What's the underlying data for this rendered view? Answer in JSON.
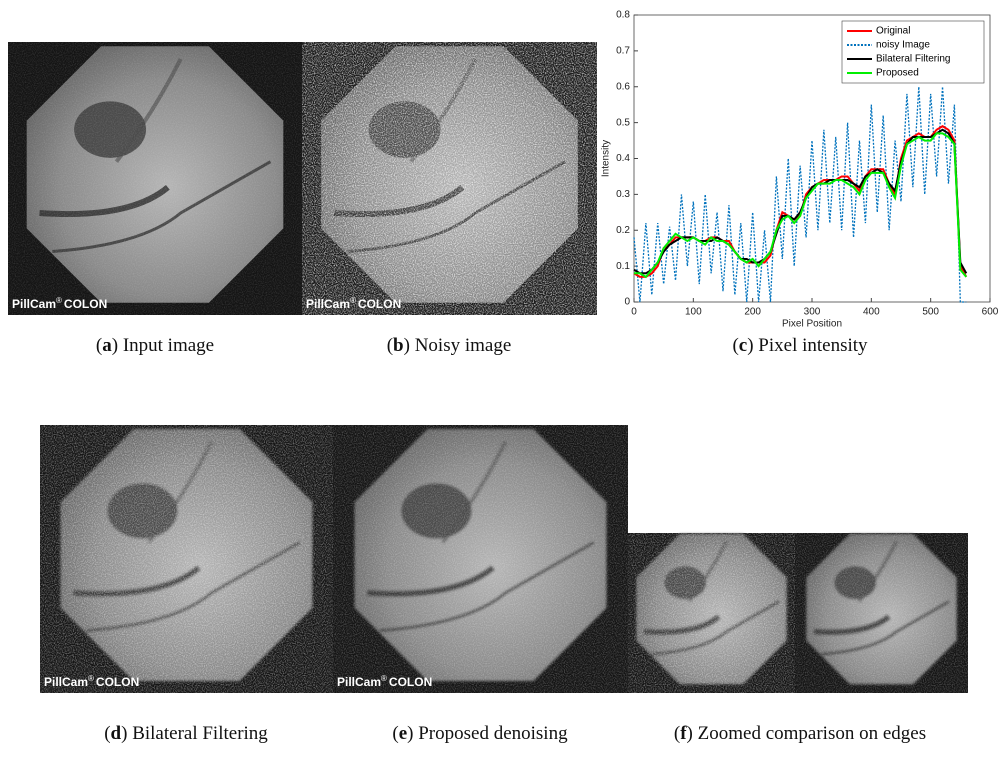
{
  "overlay": {
    "brand": "PillCam",
    "mark": "®",
    "product": "COLON"
  },
  "panels": [
    {
      "label": "a",
      "caption": "Input image"
    },
    {
      "label": "b",
      "caption": "Noisy image"
    },
    {
      "label": "c",
      "caption": "Pixel intensity"
    },
    {
      "label": "d",
      "caption": "Bilateral Filtering"
    },
    {
      "label": "e",
      "caption": "Proposed denoising"
    },
    {
      "label": "f",
      "caption": "Zoomed comparison on edges"
    }
  ],
  "chart_data": {
    "type": "line",
    "xlabel": "Pixel Position",
    "ylabel": "Intensity",
    "xlim": [
      0,
      600
    ],
    "ylim": [
      0,
      0.8
    ],
    "xticks": [
      0,
      100,
      200,
      300,
      400,
      500,
      600
    ],
    "yticks": [
      0,
      0.1,
      0.2,
      0.3,
      0.4,
      0.5,
      0.6,
      0.7,
      0.8
    ],
    "grid": false,
    "legend": "upper right",
    "x": [
      0,
      10,
      20,
      30,
      40,
      50,
      60,
      70,
      80,
      90,
      100,
      110,
      120,
      130,
      140,
      150,
      160,
      170,
      180,
      190,
      200,
      210,
      220,
      230,
      240,
      250,
      260,
      270,
      280,
      290,
      300,
      310,
      320,
      330,
      340,
      350,
      360,
      370,
      380,
      390,
      400,
      410,
      420,
      430,
      440,
      450,
      460,
      470,
      480,
      490,
      500,
      510,
      520,
      530,
      540,
      550,
      560
    ],
    "series": [
      {
        "name": "Original",
        "color": "#ff0000",
        "style": "solid",
        "values": [
          0.08,
          0.07,
          0.07,
          0.08,
          0.1,
          0.15,
          0.16,
          0.18,
          0.18,
          0.18,
          0.18,
          0.17,
          0.17,
          0.18,
          0.18,
          0.17,
          0.17,
          0.14,
          0.12,
          0.11,
          0.11,
          0.11,
          0.11,
          0.13,
          0.2,
          0.25,
          0.24,
          0.23,
          0.24,
          0.3,
          0.32,
          0.33,
          0.34,
          0.34,
          0.34,
          0.35,
          0.35,
          0.33,
          0.31,
          0.35,
          0.37,
          0.37,
          0.37,
          0.33,
          0.3,
          0.4,
          0.45,
          0.46,
          0.47,
          0.46,
          0.46,
          0.48,
          0.49,
          0.48,
          0.45,
          0.1,
          0.07
        ]
      },
      {
        "name": "noisy Image",
        "color": "#0072bd",
        "style": "dotted",
        "values": [
          0.18,
          0,
          0.22,
          0.02,
          0.22,
          0.05,
          0.21,
          0.06,
          0.3,
          0.1,
          0.28,
          0.05,
          0.3,
          0.08,
          0.25,
          0.03,
          0.27,
          0.02,
          0.22,
          0,
          0.25,
          0,
          0.2,
          0,
          0.35,
          0.12,
          0.4,
          0.1,
          0.38,
          0.18,
          0.45,
          0.2,
          0.48,
          0.22,
          0.46,
          0.2,
          0.5,
          0.18,
          0.45,
          0.22,
          0.55,
          0.25,
          0.52,
          0.2,
          0.45,
          0.28,
          0.58,
          0.32,
          0.6,
          0.3,
          0.58,
          0.35,
          0.6,
          0.33,
          0.55,
          0,
          0
        ]
      },
      {
        "name": "Bilateral Filtering",
        "color": "#000000",
        "style": "solid",
        "values": [
          0.09,
          0.08,
          0.08,
          0.09,
          0.11,
          0.14,
          0.16,
          0.17,
          0.18,
          0.18,
          0.18,
          0.17,
          0.17,
          0.17,
          0.18,
          0.17,
          0.16,
          0.14,
          0.12,
          0.12,
          0.11,
          0.11,
          0.12,
          0.14,
          0.19,
          0.24,
          0.24,
          0.23,
          0.25,
          0.29,
          0.32,
          0.33,
          0.33,
          0.34,
          0.34,
          0.34,
          0.34,
          0.33,
          0.32,
          0.35,
          0.36,
          0.37,
          0.36,
          0.33,
          0.31,
          0.39,
          0.44,
          0.46,
          0.46,
          0.46,
          0.46,
          0.47,
          0.48,
          0.47,
          0.44,
          0.11,
          0.08
        ]
      },
      {
        "name": "Proposed",
        "color": "#00ee00",
        "style": "solid",
        "values": [
          0.08,
          0.08,
          0.07,
          0.09,
          0.11,
          0.15,
          0.17,
          0.19,
          0.18,
          0.17,
          0.18,
          0.17,
          0.16,
          0.18,
          0.17,
          0.17,
          0.16,
          0.14,
          0.12,
          0.11,
          0.12,
          0.1,
          0.12,
          0.14,
          0.2,
          0.23,
          0.24,
          0.22,
          0.24,
          0.29,
          0.31,
          0.33,
          0.33,
          0.33,
          0.34,
          0.34,
          0.33,
          0.32,
          0.3,
          0.34,
          0.36,
          0.36,
          0.36,
          0.32,
          0.29,
          0.38,
          0.44,
          0.45,
          0.46,
          0.45,
          0.45,
          0.47,
          0.47,
          0.46,
          0.44,
          0.09,
          0.07
        ]
      }
    ]
  }
}
